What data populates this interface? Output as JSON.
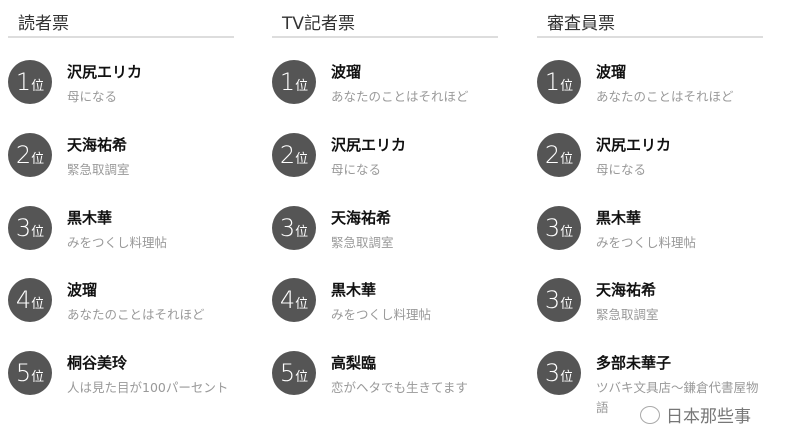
{
  "columns": [
    {
      "title": "読者票",
      "entries": [
        {
          "num": "1",
          "pos": "位",
          "name": "沢尻エリカ",
          "drama": "母になる"
        },
        {
          "num": "2",
          "pos": "位",
          "name": "天海祐希",
          "drama": "緊急取調室"
        },
        {
          "num": "3",
          "pos": "位",
          "name": "黒木華",
          "drama": "みをつくし料理帖"
        },
        {
          "num": "4",
          "pos": "位",
          "name": "波瑠",
          "drama": "あなたのことはそれほど"
        },
        {
          "num": "5",
          "pos": "位",
          "name": "桐谷美玲",
          "drama": "人は見た目が100パーセント"
        }
      ]
    },
    {
      "title": "TV記者票",
      "entries": [
        {
          "num": "1",
          "pos": "位",
          "name": "波瑠",
          "drama": "あなたのことはそれほど"
        },
        {
          "num": "2",
          "pos": "位",
          "name": "沢尻エリカ",
          "drama": "母になる"
        },
        {
          "num": "3",
          "pos": "位",
          "name": "天海祐希",
          "drama": "緊急取調室"
        },
        {
          "num": "4",
          "pos": "位",
          "name": "黒木華",
          "drama": "みをつくし料理帖"
        },
        {
          "num": "5",
          "pos": "位",
          "name": "高梨臨",
          "drama": "恋がヘタでも生きてます"
        }
      ]
    },
    {
      "title": "審査員票",
      "entries": [
        {
          "num": "1",
          "pos": "位",
          "name": "波瑠",
          "drama": "あなたのことはそれほど"
        },
        {
          "num": "2",
          "pos": "位",
          "name": "沢尻エリカ",
          "drama": "母になる"
        },
        {
          "num": "3",
          "pos": "位",
          "name": "黒木華",
          "drama": "みをつくし料理帖"
        },
        {
          "num": "3",
          "pos": "位",
          "name": "天海祐希",
          "drama": "緊急取調室"
        },
        {
          "num": "3",
          "pos": "位",
          "name": "多部未華子",
          "drama": "ツバキ文具店～鎌倉代書屋物語"
        }
      ]
    }
  ],
  "watermark": {
    "text": "日本那些事",
    "icon": "wechat-logo-icon"
  },
  "colors": {
    "badge": "#555555",
    "subtitle": "#999999",
    "divider": "#dddddd"
  }
}
